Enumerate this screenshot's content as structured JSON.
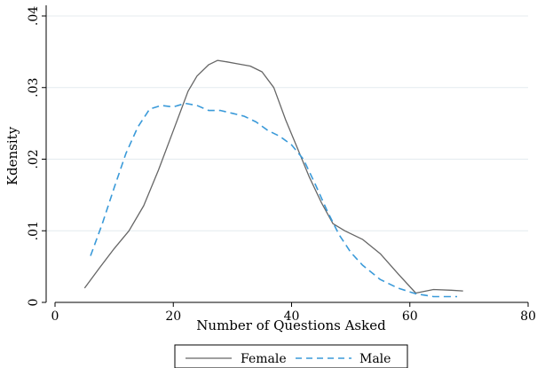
{
  "chart_data": {
    "type": "line",
    "title": "",
    "xlabel": "Number of Questions Asked",
    "ylabel": "Kdensity",
    "xlim": [
      0,
      80
    ],
    "ylim": [
      0,
      0.04
    ],
    "x_ticks": [
      0,
      20,
      40,
      60,
      80
    ],
    "y_ticks": [
      0,
      0.01,
      0.02,
      0.03,
      0.04
    ],
    "x_tick_labels": [
      "0",
      "20",
      "40",
      "60",
      "80"
    ],
    "y_tick_labels": [
      "0",
      ".01",
      ".02",
      ".03",
      ".04"
    ],
    "grid": "horizontal",
    "legend_position": "bottom",
    "series": [
      {
        "name": "Female",
        "color": "#666666",
        "style": "solid",
        "x": [
          5.0,
          7.5,
          10.0,
          12.5,
          15.0,
          17.5,
          20.0,
          22.5,
          24.0,
          26.0,
          27.5,
          29.0,
          31.0,
          33.0,
          35.0,
          37.0,
          39.0,
          41.0,
          43.0,
          45.0,
          47.0,
          49.0,
          52.0,
          55.0,
          58.0,
          61.0,
          64.0,
          67.0,
          69.0
        ],
        "y": [
          0.002,
          0.0048,
          0.0075,
          0.01,
          0.0135,
          0.0185,
          0.024,
          0.0295,
          0.0316,
          0.0332,
          0.0338,
          0.0336,
          0.0333,
          0.033,
          0.0322,
          0.03,
          0.0255,
          0.0215,
          0.0175,
          0.014,
          0.011,
          0.01,
          0.0088,
          0.0068,
          0.004,
          0.0013,
          0.0018,
          0.0017,
          0.0016
        ]
      },
      {
        "name": "Male",
        "color": "#3a9ad9",
        "style": "dashed",
        "x": [
          6.0,
          8.0,
          10.0,
          12.0,
          14.0,
          16.0,
          18.0,
          20.0,
          22.0,
          24.0,
          26.0,
          28.0,
          30.0,
          32.0,
          34.0,
          36.0,
          38.0,
          40.0,
          42.0,
          44.0,
          46.0,
          48.0,
          50.0,
          52.0,
          55.0,
          58.0,
          61.0,
          64.0,
          68.0
        ],
        "y": [
          0.0065,
          0.011,
          0.016,
          0.0208,
          0.0245,
          0.027,
          0.0275,
          0.0273,
          0.0278,
          0.0275,
          0.0268,
          0.0268,
          0.0264,
          0.026,
          0.0252,
          0.024,
          0.0232,
          0.022,
          0.02,
          0.0165,
          0.0128,
          0.0095,
          0.007,
          0.0052,
          0.0032,
          0.002,
          0.0012,
          0.0008,
          0.0008
        ]
      }
    ]
  }
}
